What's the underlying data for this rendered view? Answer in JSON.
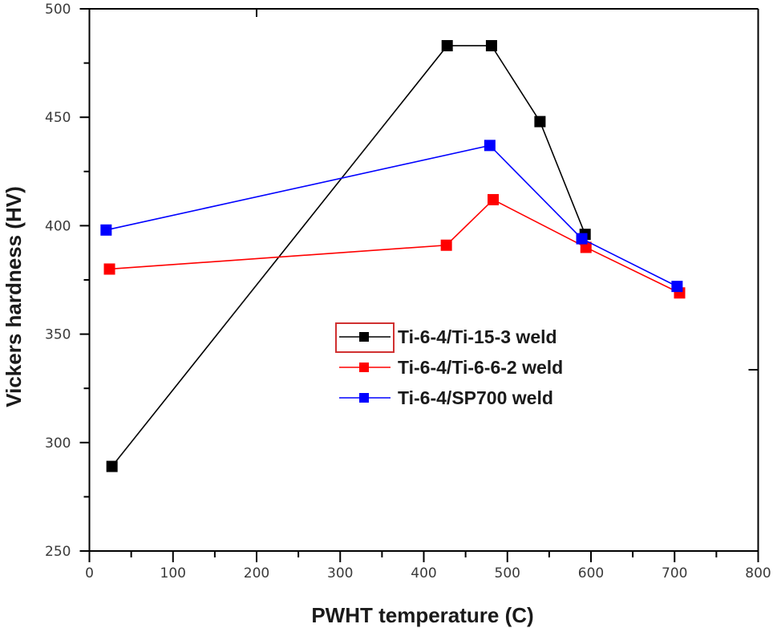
{
  "chart_data": {
    "type": "line",
    "title": "",
    "xlabel": "PWHT temperature (C)",
    "ylabel": "Vickers hardness (HV)",
    "xlim": [
      0,
      800
    ],
    "ylim": [
      250,
      500
    ],
    "xticks": [
      0,
      100,
      200,
      300,
      400,
      500,
      600,
      700,
      800
    ],
    "yticks": [
      250,
      300,
      350,
      400,
      450,
      500
    ],
    "xtick_labels": [
      "0",
      "100",
      "200",
      "300",
      "400",
      "500",
      "600",
      "700",
      "800"
    ],
    "ytick_labels": [
      "250",
      "300",
      "350",
      "400",
      "450",
      "500"
    ],
    "grid": false,
    "legend_position": "center-right",
    "series": [
      {
        "name": "Ti-6-4/Ti-15-3 weld",
        "color": "#000000",
        "marker": "square",
        "x": [
          27,
          428,
          481,
          539,
          593
        ],
        "y": [
          289,
          483,
          483,
          448,
          396
        ]
      },
      {
        "name": "Ti-6-4/Ti-6-6-2 weld",
        "color": "#ff0000",
        "marker": "square",
        "x": [
          24,
          427,
          483,
          594,
          706
        ],
        "y": [
          380,
          391,
          412,
          390,
          369
        ]
      },
      {
        "name": "Ti-6-4/SP700 weld",
        "color": "#0000ff",
        "marker": "square",
        "x": [
          20,
          479,
          589,
          703
        ],
        "y": [
          398,
          437,
          394,
          372
        ]
      }
    ],
    "legend_highlight_color": "#d03030"
  }
}
